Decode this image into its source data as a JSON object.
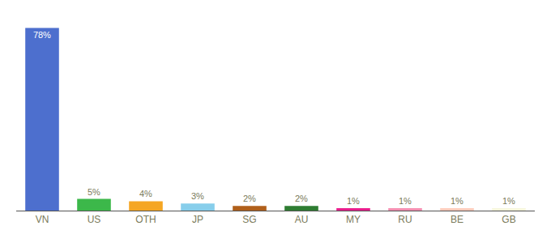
{
  "chart_data": {
    "type": "bar",
    "categories": [
      "VN",
      "US",
      "OTH",
      "JP",
      "SG",
      "AU",
      "MY",
      "RU",
      "BE",
      "GB"
    ],
    "values": [
      78,
      5,
      4,
      3,
      2,
      2,
      1,
      1,
      1,
      1
    ],
    "value_labels": [
      "78%",
      "5%",
      "4%",
      "3%",
      "2%",
      "2%",
      "1%",
      "1%",
      "1%",
      "1%"
    ],
    "colors": [
      "#4d6fce",
      "#3cb84a",
      "#f5a623",
      "#87ceeb",
      "#b05f1a",
      "#2e7d32",
      "#e91e8c",
      "#f48fb1",
      "#ffccbc",
      "#f5f5dc"
    ],
    "ylim": [
      0,
      83
    ],
    "data_labels": true,
    "tick_labels": "x",
    "grid": false
  }
}
